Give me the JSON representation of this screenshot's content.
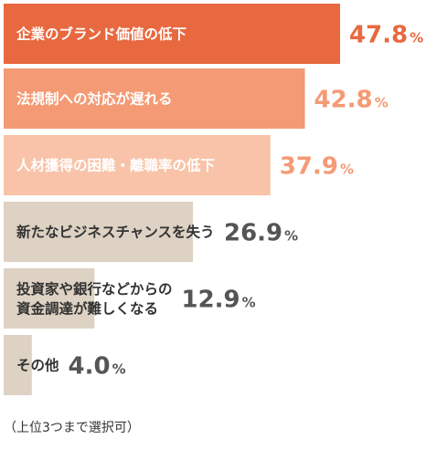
{
  "chart_data": {
    "type": "bar",
    "orientation": "horizontal",
    "categories": [
      "企業のブランド価値の低下",
      "法規制への対応が遅れる",
      "人材獲得の困難・離職率の低下",
      "新たなビジネスチャンスを失う",
      "投資家や銀行などからの資金調達が難しくなる",
      "その他"
    ],
    "label_lines": [
      [
        "企業のブランド価値の低下"
      ],
      [
        "法規制への対応が遅れる"
      ],
      [
        "人材獲得の困難・離職率の低下"
      ],
      [
        "新たなビジネスチャンスを失う"
      ],
      [
        "投資家や銀行などからの",
        "資金調達が難しくなる"
      ],
      [
        "その他"
      ]
    ],
    "values": [
      47.8,
      42.8,
      37.9,
      26.9,
      12.9,
      4.0
    ],
    "value_labels": [
      "47.8",
      "42.8",
      "37.9",
      "26.9",
      "12.9",
      "4.0"
    ],
    "unit": "%",
    "bar_colors": [
      "#e8683f",
      "#f49a74",
      "#f8c3a9",
      "#ddd2c3",
      "#ddd2c3",
      "#ddd2c3"
    ],
    "label_colors": [
      "#ffffff",
      "#ffffff",
      "#ffffff",
      "#333333",
      "#333333",
      "#333333"
    ],
    "value_colors": [
      "#e8683f",
      "#f49a74",
      "#f49a74",
      "#555555",
      "#555555",
      "#555555"
    ],
    "grid": false,
    "legend": "none"
  },
  "footnote": "（上位3つまで選択可）"
}
